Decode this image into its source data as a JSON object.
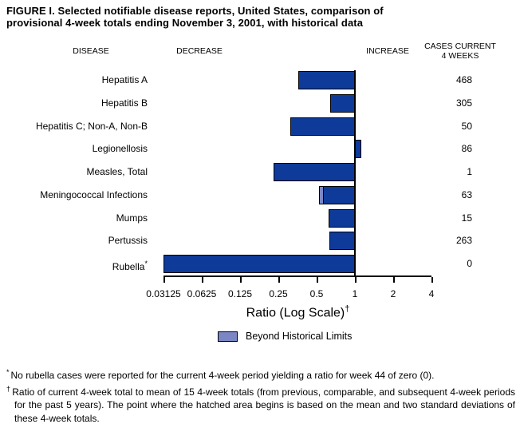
{
  "title": "FIGURE I. Selected notifiable disease reports, United States, comparison of\nprovisional 4-week totals ending November 3, 2001, with historical data",
  "headers": {
    "disease": "DISEASE",
    "decrease": "DECREASE",
    "increase": "INCREASE",
    "cases_line1": "CASES CURRENT",
    "cases_line2": "4 WEEKS"
  },
  "chart_data": {
    "type": "bar",
    "orientation": "horizontal",
    "scale": "log2",
    "baseline_ratio": 1,
    "x_ticks": [
      "0.03125",
      "0.0625",
      "0.125",
      "0.25",
      "0.5",
      "1",
      "2",
      "4"
    ],
    "x_range": [
      0.03125,
      4
    ],
    "xlabel": "Ratio (Log Scale)",
    "xlabel_superscript": "†",
    "rows": [
      {
        "disease": "Hepatitis A",
        "label_sup": "",
        "cases": "468",
        "ratio": 0.36
      },
      {
        "disease": "Hepatitis B",
        "label_sup": "",
        "cases": "305",
        "ratio": 0.64
      },
      {
        "disease": "Hepatitis C; Non-A, Non-B",
        "label_sup": "",
        "cases": "50",
        "ratio": 0.31
      },
      {
        "disease": "Legionellosis",
        "label_sup": "",
        "cases": "86",
        "ratio": 1.12
      },
      {
        "disease": "Measles, Total",
        "label_sup": "",
        "cases": "1",
        "ratio": 0.23
      },
      {
        "disease": "Meningococcal Infections",
        "label_sup": "",
        "cases": "63",
        "ratio": 0.52,
        "beyond_limit_ratio": 0.57
      },
      {
        "disease": "Mumps",
        "label_sup": "",
        "cases": "15",
        "ratio": 0.62
      },
      {
        "disease": "Pertussis",
        "label_sup": "",
        "cases": "263",
        "ratio": 0.63
      },
      {
        "disease": "Rubella",
        "label_sup": "*",
        "cases": "0",
        "ratio": 0.03125,
        "clipped_at_axis": true
      }
    ],
    "colors": {
      "bar": "#0e3a99",
      "beyond_historical": "#7b87c4",
      "axis": "#000000"
    },
    "legend_position": "bottom"
  },
  "legend": {
    "label": "Beyond Historical Limits"
  },
  "footnotes": [
    {
      "marker": "*",
      "text": "No rubella cases were reported for the current 4-week period yielding a ratio for week 44 of zero (0)."
    },
    {
      "marker": "†",
      "text": "Ratio of current 4-week total to mean of 15 4-week totals (from previous, comparable, and subsequent 4-week periods for the past 5 years). The point where the hatched area begins is based on the mean and two standard deviations of these 4-week totals."
    }
  ]
}
